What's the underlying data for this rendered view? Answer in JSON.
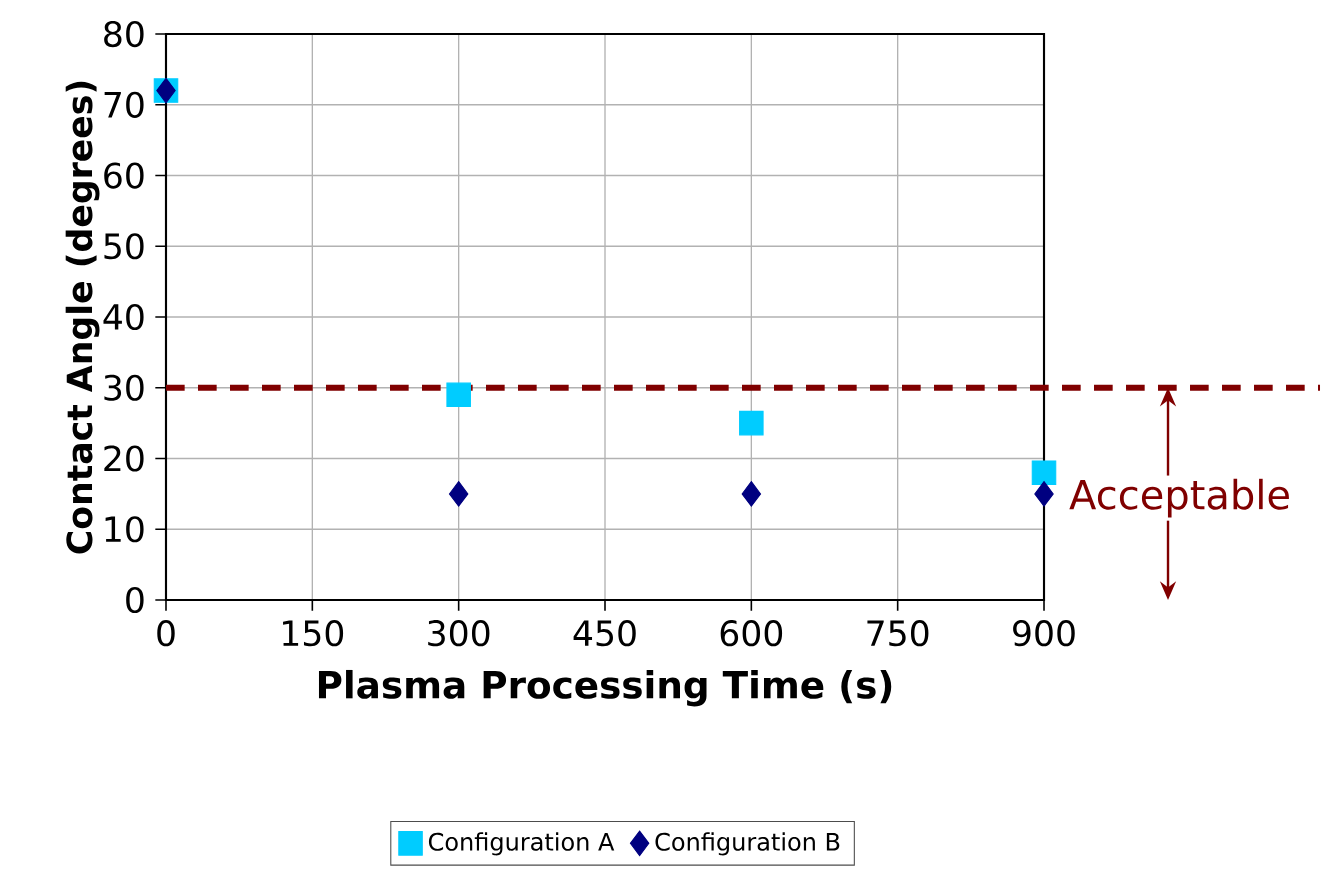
{
  "chart_data": {
    "type": "scatter",
    "xlabel": "Plasma Processing Time (s)",
    "ylabel": "Contact Angle (degrees)",
    "x": [
      0,
      300,
      600,
      900
    ],
    "series": [
      {
        "name": "Configuration A",
        "color": "#00ccff",
        "marker": "square",
        "values": [
          72,
          29,
          25,
          18
        ]
      },
      {
        "name": "Configuration B",
        "color": "#000080",
        "marker": "diamond",
        "values": [
          72,
          15,
          15,
          15
        ]
      }
    ],
    "xlim": [
      0,
      900
    ],
    "xticks": [
      0,
      150,
      300,
      450,
      600,
      750,
      900
    ],
    "ylim": [
      0,
      80
    ],
    "yticks": [
      0,
      10,
      20,
      30,
      40,
      50,
      60,
      70,
      80
    ],
    "grid": true,
    "legend": "bottom",
    "ref_lines": [
      {
        "axis": "y",
        "value": 30,
        "color": "#800000",
        "line_style": "dashed"
      }
    ],
    "annotations": [
      "Acceptable"
    ]
  }
}
